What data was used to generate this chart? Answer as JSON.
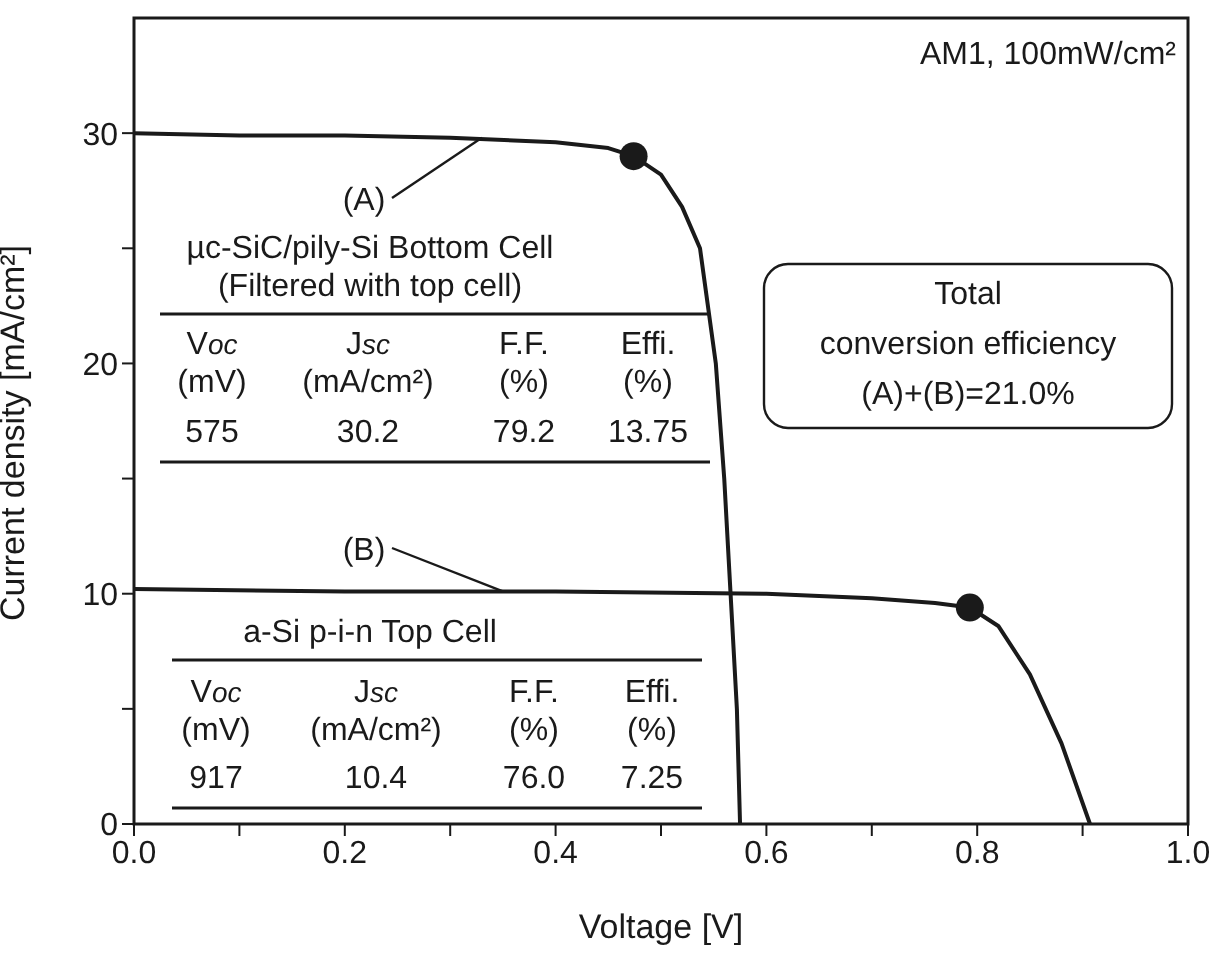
{
  "chart_data": {
    "type": "line",
    "xlabel": "Voltage [V]",
    "ylabel": "Current density [mA/cm²]",
    "xlim": [
      0,
      1
    ],
    "ylim": [
      0,
      35
    ],
    "xticks": [
      {
        "value": 0,
        "label": "0.0"
      },
      {
        "value": 0.1,
        "label": null
      },
      {
        "value": 0.2,
        "label": "0.2"
      },
      {
        "value": 0.3,
        "label": null
      },
      {
        "value": 0.4,
        "label": "0.4"
      },
      {
        "value": 0.5,
        "label": null
      },
      {
        "value": 0.6,
        "label": "0.6"
      },
      {
        "value": 0.7,
        "label": null
      },
      {
        "value": 0.8,
        "label": "0.8"
      },
      {
        "value": 0.9,
        "label": null
      },
      {
        "value": 1,
        "label": "1.0"
      }
    ],
    "yticks": [
      0,
      {
        "value": 5,
        "label": null
      },
      10,
      {
        "value": 15,
        "label": null
      },
      20,
      {
        "value": 25,
        "label": null
      },
      30
    ],
    "grid": false,
    "legend": false,
    "marker": "none",
    "line_style": "solid",
    "series": [
      {
        "color": "#1a1a1a",
        "x": [
          0,
          0.1,
          0.2,
          0.3,
          0.4,
          0.45,
          0.474,
          0.5,
          0.52,
          0.537,
          0.552,
          0.56,
          0.566,
          0.572,
          0.575
        ],
        "values": [
          30,
          29.9,
          29.9,
          29.8,
          29.6,
          29.35,
          29.0,
          28.2,
          26.8,
          25,
          20,
          15,
          10,
          5,
          0
        ]
      },
      {
        "color": "#1a1a1a",
        "x": [
          0,
          0.2,
          0.4,
          0.6,
          0.7,
          0.76,
          0.793,
          0.82,
          0.85,
          0.88,
          0.907
        ],
        "values": [
          10.2,
          10.1,
          10.1,
          10.0,
          9.8,
          9.6,
          9.4,
          8.6,
          6.5,
          3.5,
          0
        ]
      },
      {
        "type": "scatter",
        "color": "#1a1a1a",
        "marker": "circle",
        "x": [
          0.474
        ],
        "values": [
          29.0
        ]
      },
      {
        "type": "scatter",
        "color": "#1a1a1a",
        "marker": "circle",
        "x": [
          0.793
        ],
        "values": [
          9.4
        ]
      }
    ],
    "annotations": [
      "AM1, 100mW/cm²",
      {
        "text": "(A)",
        "x": 0.33,
        "y": 29.8
      },
      "µc-SiC/pily-Si Bottom Cell",
      "(Filtered with top cell)",
      "Voc",
      "Jsc",
      "F.F.",
      "Effi.",
      "(mV)",
      "(mA/cm²)",
      "(%)",
      "(%)",
      "575",
      "30.2",
      "79.2",
      "13.75",
      "Total",
      "conversion efficiency",
      "(A)+(B)=21.0%",
      {
        "text": "(B)",
        "x": 0.35,
        "y": 10.1
      },
      "a-Si p-i-n Top Cell",
      "Voc",
      "Jsc",
      "F.F.",
      "Effi.",
      "(mV)",
      "(mA/cm²)",
      "(%)",
      "(%)",
      "917",
      "10.4",
      "76.0",
      "7.25"
    ]
  }
}
